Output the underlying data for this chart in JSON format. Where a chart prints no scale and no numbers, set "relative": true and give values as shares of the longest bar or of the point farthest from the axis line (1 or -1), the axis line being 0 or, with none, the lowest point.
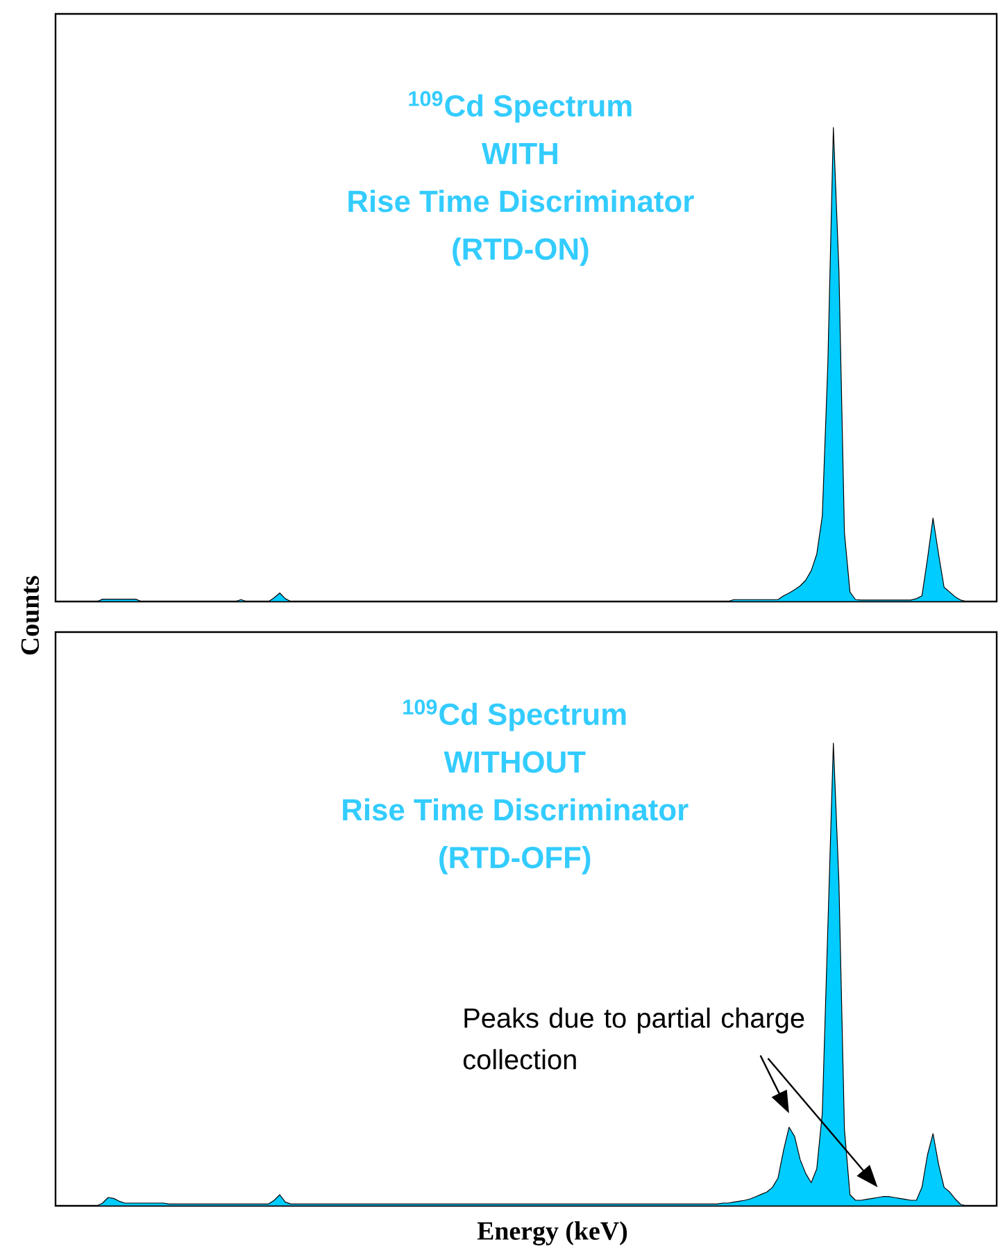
{
  "chart_data": [
    {
      "type": "area",
      "relative": true,
      "title": "$^{109}$Cd Spectrum",
      "subtitle": "WITH",
      "ylabel": "Counts",
      "annotations": [
        "Rise Time Discriminator",
        "(RTD-ON)"
      ],
      "color": "#00ccff",
      "categories": [
        null,
        null,
        null,
        null,
        null,
        null,
        null,
        null,
        null,
        null,
        null,
        null,
        null,
        null,
        null,
        null,
        null,
        null,
        null,
        null,
        null,
        null,
        null,
        null,
        null,
        null,
        null,
        null,
        null,
        null,
        null,
        null,
        null,
        null,
        null,
        null,
        null,
        null,
        null,
        null,
        null,
        null,
        null,
        null,
        null,
        null,
        null,
        null,
        null,
        null,
        null,
        null,
        null,
        null,
        null,
        null,
        null,
        null,
        null,
        null,
        null,
        null,
        null,
        null,
        null,
        null,
        null,
        null,
        null,
        null,
        null,
        null,
        null,
        null,
        null,
        null,
        null,
        null,
        null,
        null,
        null,
        null,
        null,
        null,
        null,
        null,
        null,
        null,
        null,
        null,
        null,
        null,
        null,
        null,
        null,
        null,
        null,
        null,
        null,
        null,
        null,
        null,
        null,
        null,
        null,
        null,
        null,
        null,
        null,
        null,
        null,
        null,
        null,
        null,
        null,
        null,
        null,
        null,
        null,
        null,
        null,
        null,
        null,
        null,
        null,
        null,
        null,
        null,
        null,
        null,
        null,
        null,
        null,
        null,
        null,
        null,
        null,
        null,
        null,
        null,
        null,
        null,
        null,
        null,
        null,
        null,
        null,
        null,
        null,
        null,
        null,
        null,
        null,
        null,
        null,
        null,
        null,
        null,
        null,
        null,
        null,
        null,
        null,
        null,
        null,
        null,
        null,
        null,
        null,
        null
      ],
      "values": [
        0,
        0,
        0,
        0,
        0,
        0,
        0,
        0,
        0.005,
        0.005,
        0.005,
        0.005,
        0.005,
        0.005,
        0.005,
        0,
        0,
        0,
        0,
        0,
        0,
        0,
        0,
        0,
        0,
        0,
        0,
        0,
        0,
        0,
        0,
        0,
        0,
        0.004,
        0,
        0,
        0,
        0,
        0,
        0.008,
        0.018,
        0.006,
        0,
        0,
        0,
        0,
        0,
        0,
        0,
        0,
        0,
        0,
        0,
        0,
        0,
        0,
        0,
        0,
        0,
        0,
        0,
        0,
        0,
        0,
        0,
        0,
        0,
        0,
        0,
        0,
        0,
        0,
        0,
        0,
        0,
        0,
        0,
        0,
        0,
        0,
        0,
        0,
        0,
        0,
        0,
        0,
        0,
        0,
        0,
        0,
        0,
        0,
        0,
        0,
        0,
        0,
        0,
        0,
        0,
        0,
        0,
        0,
        0,
        0,
        0,
        0,
        0,
        0,
        0,
        0,
        0,
        0,
        0,
        0,
        0,
        0,
        0,
        0,
        0,
        0,
        0,
        0,
        0.004,
        0.004,
        0.004,
        0.004,
        0.004,
        0.004,
        0.004,
        0.004,
        0.004,
        0.012,
        0.018,
        0.025,
        0.033,
        0.045,
        0.065,
        0.1,
        0.18,
        0.5,
        1,
        0.7,
        0.145,
        0.02,
        0.004,
        0.003,
        0.003,
        0.003,
        0.003,
        0.003,
        0.003,
        0.003,
        0.003,
        0.003,
        0.003,
        0.006,
        0.012,
        0.09,
        0.176,
        0.1,
        0.03,
        0.02,
        0.01,
        0.003,
        0,
        0,
        0,
        0,
        0,
        0
      ]
    },
    {
      "type": "area",
      "relative": true,
      "title": "$^{109}$Cd Spectrum",
      "subtitle": "WITHOUT",
      "xlabel": "Energy (keV)",
      "annotations": [
        "Rise Time Discriminator",
        "(RTD-OFF)",
        "Peaks due to partial charge collection"
      ],
      "color": "#00ccff",
      "categories": [
        null,
        null,
        null,
        null,
        null,
        null,
        null,
        null,
        null,
        null,
        null,
        null,
        null,
        null,
        null,
        null,
        null,
        null,
        null,
        null,
        null,
        null,
        null,
        null,
        null,
        null,
        null,
        null,
        null,
        null,
        null,
        null,
        null,
        null,
        null,
        null,
        null,
        null,
        null,
        null,
        null,
        null,
        null,
        null,
        null,
        null,
        null,
        null,
        null,
        null,
        null,
        null,
        null,
        null,
        null,
        null,
        null,
        null,
        null,
        null,
        null,
        null,
        null,
        null,
        null,
        null,
        null,
        null,
        null,
        null,
        null,
        null,
        null,
        null,
        null,
        null,
        null,
        null,
        null,
        null,
        null,
        null,
        null,
        null,
        null,
        null,
        null,
        null,
        null,
        null,
        null,
        null,
        null,
        null,
        null,
        null,
        null,
        null,
        null,
        null,
        null,
        null,
        null,
        null,
        null,
        null,
        null,
        null,
        null,
        null,
        null,
        null,
        null,
        null,
        null,
        null,
        null,
        null,
        null,
        null,
        null,
        null,
        null,
        null,
        null,
        null,
        null,
        null,
        null,
        null,
        null,
        null,
        null,
        null,
        null,
        null,
        null,
        null,
        null,
        null,
        null,
        null,
        null,
        null,
        null,
        null,
        null,
        null,
        null,
        null,
        null,
        null,
        null,
        null,
        null,
        null,
        null,
        null,
        null,
        null,
        null,
        null,
        null,
        null,
        null,
        null,
        null,
        null,
        null,
        null
      ],
      "values": [
        0,
        0,
        0,
        0,
        0,
        0,
        0,
        0,
        0.006,
        0.018,
        0.016,
        0.01,
        0.006,
        0.006,
        0.006,
        0.006,
        0.006,
        0.006,
        0.006,
        0.006,
        0.004,
        0.004,
        0.004,
        0.004,
        0.004,
        0.004,
        0.004,
        0.004,
        0.004,
        0.004,
        0.004,
        0.004,
        0.004,
        0.004,
        0.004,
        0.004,
        0.004,
        0.004,
        0.004,
        0.012,
        0.024,
        0.008,
        0.004,
        0.004,
        0.004,
        0.004,
        0.004,
        0.004,
        0.004,
        0.004,
        0.004,
        0.004,
        0.004,
        0.004,
        0.004,
        0.004,
        0.004,
        0.004,
        0.004,
        0.004,
        0.004,
        0.004,
        0.004,
        0.004,
        0.004,
        0.004,
        0.004,
        0.004,
        0.004,
        0.004,
        0.004,
        0.004,
        0.004,
        0.004,
        0.004,
        0.004,
        0.004,
        0.004,
        0.004,
        0.004,
        0.004,
        0.004,
        0.004,
        0.004,
        0.004,
        0.004,
        0.004,
        0.004,
        0.004,
        0.004,
        0.004,
        0.004,
        0.004,
        0.004,
        0.004,
        0.004,
        0.004,
        0.004,
        0.004,
        0.004,
        0.004,
        0.004,
        0.004,
        0.004,
        0.004,
        0.004,
        0.004,
        0.004,
        0.004,
        0.004,
        0.004,
        0.004,
        0.004,
        0.004,
        0.004,
        0.004,
        0.004,
        0.004,
        0.004,
        0.004,
        0.006,
        0.006,
        0.008,
        0.01,
        0.012,
        0.015,
        0.02,
        0.025,
        0.03,
        0.04,
        0.06,
        0.12,
        0.17,
        0.15,
        0.1,
        0.07,
        0.05,
        0.08,
        0.2,
        0.6,
        1,
        0.7,
        0.165,
        0.024,
        0.012,
        0.012,
        0.014,
        0.016,
        0.018,
        0.02,
        0.02,
        0.018,
        0.016,
        0.014,
        0.012,
        0.012,
        0.04,
        0.11,
        0.156,
        0.09,
        0.04,
        0.03,
        0.015,
        0.003,
        0,
        0,
        0,
        0,
        0,
        0
      ]
    }
  ]
}
